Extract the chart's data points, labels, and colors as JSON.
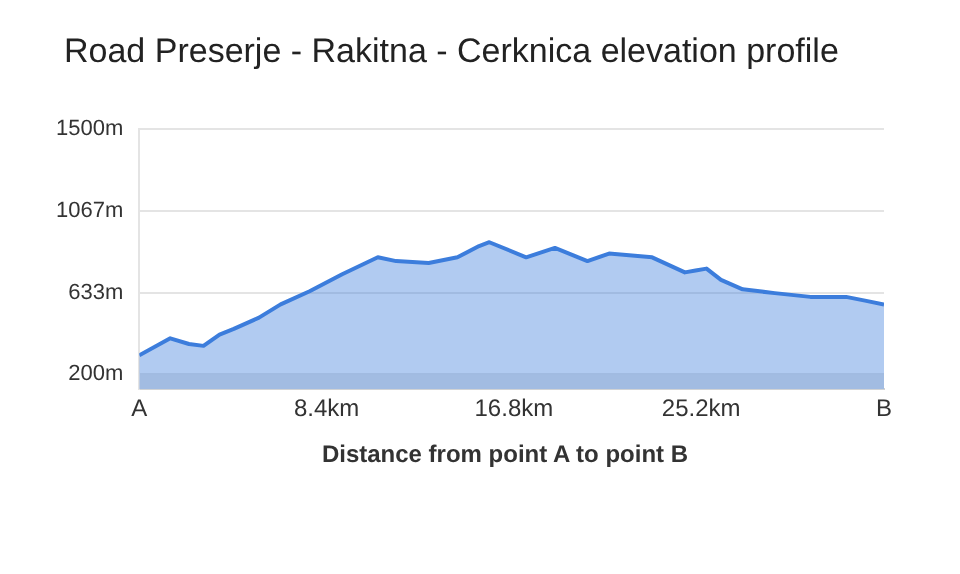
{
  "chart_data": {
    "type": "area",
    "title": "Road Preserje - Rakitna - Cerknica elevation profile",
    "xlabel": "Distance from point A to point B",
    "x": [
      0,
      1.39,
      2.23,
      2.88,
      3.6,
      4.24,
      5.37,
      6.34,
      7.64,
      9.1,
      10.7,
      11.52,
      12.98,
      14.27,
      15.24,
      15.7,
      17.35,
      18.64,
      20.1,
      21.07,
      23.0,
      24.47,
      24.95,
      25.44,
      26.09,
      27.06,
      28.5,
      30.1,
      31.7,
      32.55,
      33.4
    ],
    "series": [
      {
        "color": "#3c7ddc",
        "values": [
          300,
          390,
          360,
          350,
          410,
          440,
          500,
          570,
          640,
          730,
          820,
          800,
          790,
          820,
          880,
          900,
          820,
          870,
          800,
          840,
          820,
          740,
          750,
          760,
          700,
          650,
          630,
          610,
          610,
          590,
          570
        ]
      }
    ],
    "xlim": [
      0,
      33.4
    ],
    "xticks": [
      {
        "value": 0,
        "label": "A"
      },
      {
        "value": 8.4,
        "label": "8.4km"
      },
      {
        "value": 16.8,
        "label": "16.8km"
      },
      {
        "value": 25.2,
        "label": "25.2km"
      },
      {
        "value": 33.4,
        "label": "B"
      }
    ],
    "ylim": [
      120,
      1500
    ],
    "yticks": [
      {
        "value": 200,
        "label": "200m"
      },
      {
        "value": 633,
        "label": "633m"
      },
      {
        "value": 1067,
        "label": "1067m"
      },
      {
        "value": 1500,
        "label": "1500m"
      }
    ],
    "bands": [
      {
        "axis": "y",
        "from": 120,
        "to": 200,
        "color": "#e6e6e6"
      }
    ],
    "grid": "y",
    "legend": false
  }
}
